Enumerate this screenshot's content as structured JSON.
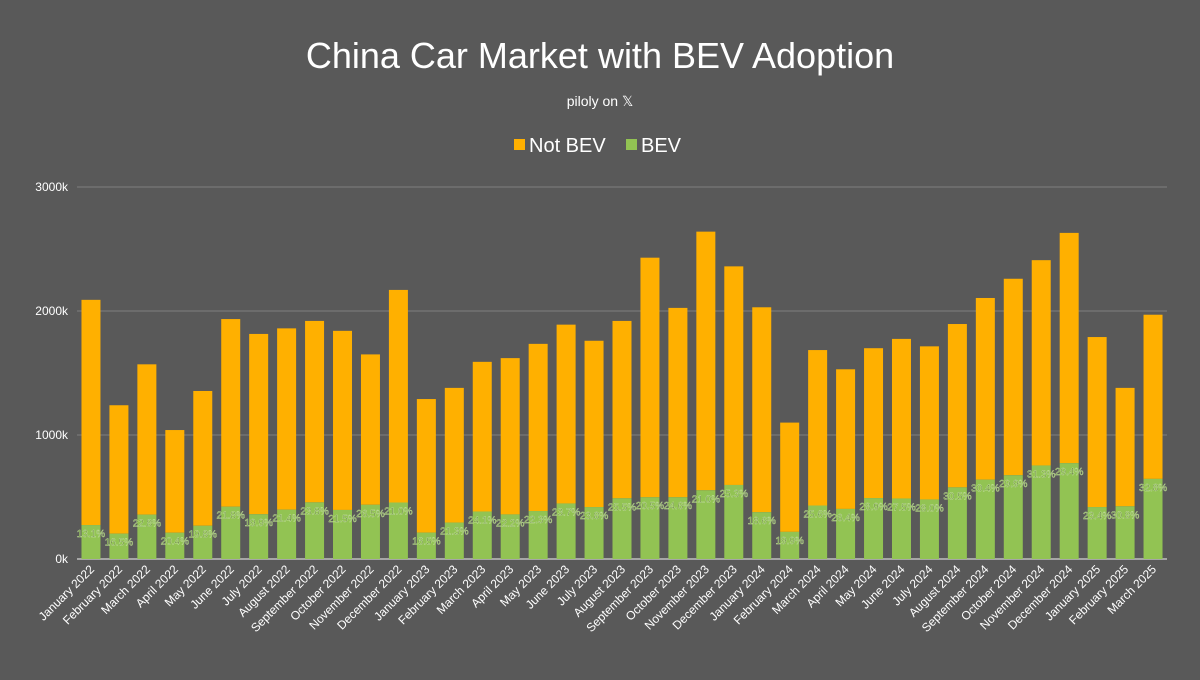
{
  "chart_data": {
    "type": "bar",
    "stacked": true,
    "title": "China Car Market with BEV Adoption",
    "subtitle": "piloly on 𝕏",
    "xlabel": "",
    "ylabel": "",
    "ylim": [
      0,
      3000000
    ],
    "y_ticks": [
      0,
      1000000,
      2000000,
      3000000
    ],
    "y_tick_labels": [
      "0k",
      "1000k",
      "2000k",
      "3000k"
    ],
    "grid": true,
    "legend_position": "top-center",
    "legend": [
      {
        "name": "Not BEV",
        "color": "#FFB000"
      },
      {
        "name": "BEV",
        "color": "#92C353"
      }
    ],
    "categories": [
      "January 2022",
      "February 2022",
      "March 2022",
      "April 2022",
      "May 2022",
      "June 2022",
      "July 2022",
      "August 2022",
      "September 2022",
      "October 2022",
      "November 2022",
      "December 2022",
      "January 2023",
      "February 2023",
      "March 2023",
      "April 2023",
      "May 2023",
      "June 2023",
      "July 2023",
      "August 2023",
      "September 2023",
      "October 2023",
      "November 2023",
      "December 2023",
      "January 2024",
      "February 2024",
      "March 2024",
      "April 2024",
      "May 2024",
      "June 2024",
      "July 2024",
      "August 2024",
      "September 2024",
      "October 2024",
      "November 2024",
      "December 2024",
      "January 2025",
      "February 2025",
      "March 2025"
    ],
    "total_sales": [
      2090000,
      1240000,
      1570000,
      1040000,
      1355000,
      1935000,
      1815000,
      1860000,
      1920000,
      1840000,
      1650000,
      2170000,
      1290000,
      1380000,
      1590000,
      1620000,
      1735000,
      1890000,
      1760000,
      1920000,
      2430000,
      2025000,
      2640000,
      2360000,
      2030000,
      1100000,
      1685000,
      1530000,
      1700000,
      1775000,
      1715000,
      1895000,
      2105000,
      2260000,
      2410000,
      2630000,
      1790000,
      1380000,
      1970000
    ],
    "bev_share_labels": [
      "13.1%",
      "16.5%",
      "22.8%",
      "20.4%",
      "19.8%",
      "21.8%",
      "19.9%",
      "21.4%",
      "23.8%",
      "21.5%",
      "26.5%",
      "21.0%",
      "16.5%",
      "21.3%",
      "24.1%",
      "22.2%",
      "22.3%",
      "23.7%",
      "23.8%",
      "25.5%",
      "20.5%",
      "24.6%",
      "21.0%",
      "25.3%",
      "18.6%",
      "19.9%",
      "25.6%",
      "26.4%",
      "28.9%",
      "27.5%",
      "28.0%",
      "30.5%",
      "30.4%",
      "29.9%",
      "31.3%",
      "29.4%",
      "23.4%",
      "30.8%",
      "32.8%"
    ],
    "bev_share": [
      13.1,
      16.5,
      22.8,
      20.4,
      19.8,
      21.8,
      19.9,
      21.4,
      23.8,
      21.5,
      26.5,
      21.0,
      16.5,
      21.3,
      24.1,
      22.2,
      22.3,
      23.7,
      23.8,
      25.5,
      20.5,
      24.6,
      21.0,
      25.3,
      18.6,
      19.9,
      25.6,
      26.4,
      28.9,
      27.5,
      28.0,
      30.5,
      30.4,
      29.9,
      31.3,
      29.4,
      23.4,
      30.8,
      32.8
    ]
  }
}
